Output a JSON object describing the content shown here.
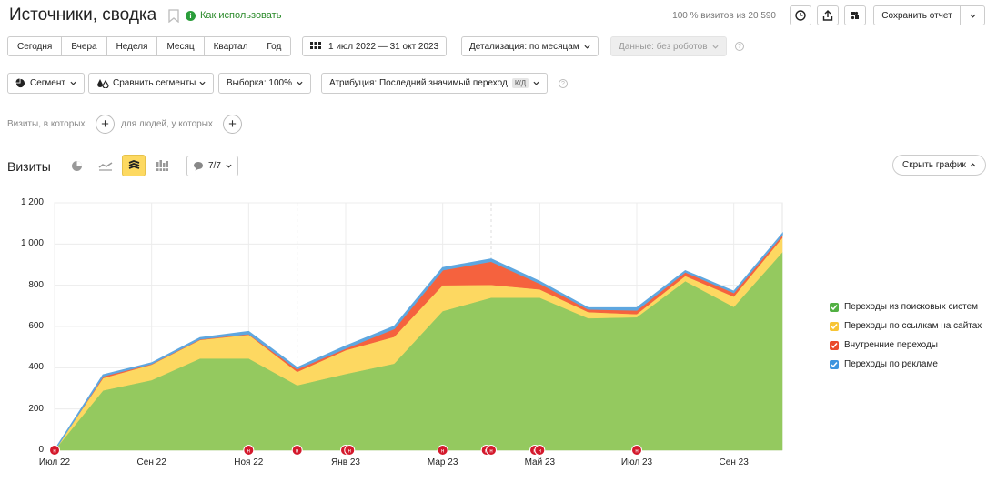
{
  "header": {
    "title": "Источники, сводка",
    "howto_label": "Как использовать",
    "visits_percent": "100 % визитов из 20 590",
    "save_label": "Сохранить отчет"
  },
  "periods": [
    "Сегодня",
    "Вчера",
    "Неделя",
    "Месяц",
    "Квартал",
    "Год"
  ],
  "date_range": "1 июл 2022 — 31 окт 2023",
  "detail_label": "Детализация: по месяцам",
  "data_label": "Данные: без роботов",
  "segment_label": "Сегмент",
  "compare_label": "Сравнить сегменты",
  "sample_label": "Выборка: 100%",
  "attribution_label": "Атрибуция: Последний значимый переход",
  "attribution_badge": "К/Д",
  "filters": {
    "visits_where": "Визиты, в которых",
    "people_where": "для людей, у которых"
  },
  "chart_section": {
    "title": "Визиты",
    "series_count": "7/7",
    "hide_label": "Скрыть график"
  },
  "chart_data": {
    "type": "area",
    "stacked": true,
    "ylim": [
      0,
      1200
    ],
    "yticks": [
      "0",
      "200",
      "400",
      "600",
      "800",
      "1 000",
      "1 200"
    ],
    "xticks": [
      "Июл 22",
      "Сен 22",
      "Ноя 22",
      "Янв 23",
      "Мар 23",
      "Май 23",
      "Июл 23",
      "Сен 23"
    ],
    "x": [
      "2022-07",
      "2022-08",
      "2022-09",
      "2022-10",
      "2022-11",
      "2022-12",
      "2023-01",
      "2023-02",
      "2023-03",
      "2023-04",
      "2023-05",
      "2023-06",
      "2023-07",
      "2023-08",
      "2023-09",
      "2023-10"
    ],
    "series": [
      {
        "name": "Переходы из поисковых систем",
        "color": "#94c95f",
        "values": [
          0,
          290,
          340,
          445,
          445,
          315,
          370,
          420,
          675,
          740,
          740,
          640,
          645,
          820,
          695,
          960
        ]
      },
      {
        "name": "Переходы по ссылкам на сайтах",
        "color": "#fdd861",
        "values": [
          0,
          60,
          75,
          90,
          115,
          65,
          115,
          130,
          125,
          62,
          40,
          30,
          15,
          25,
          50,
          70
        ]
      },
      {
        "name": "Внутренние переходы",
        "color": "#f5623e",
        "values": [
          0,
          10,
          5,
          5,
          5,
          15,
          10,
          40,
          75,
          115,
          30,
          15,
          20,
          20,
          20,
          15
        ]
      },
      {
        "name": "Переходы по рекламе",
        "color": "#5ea7e0",
        "values": [
          0,
          5,
          3,
          5,
          10,
          5,
          10,
          10,
          10,
          10,
          8,
          5,
          10,
          5,
          5,
          5
        ]
      }
    ],
    "grid": true,
    "legend_position": "right"
  }
}
